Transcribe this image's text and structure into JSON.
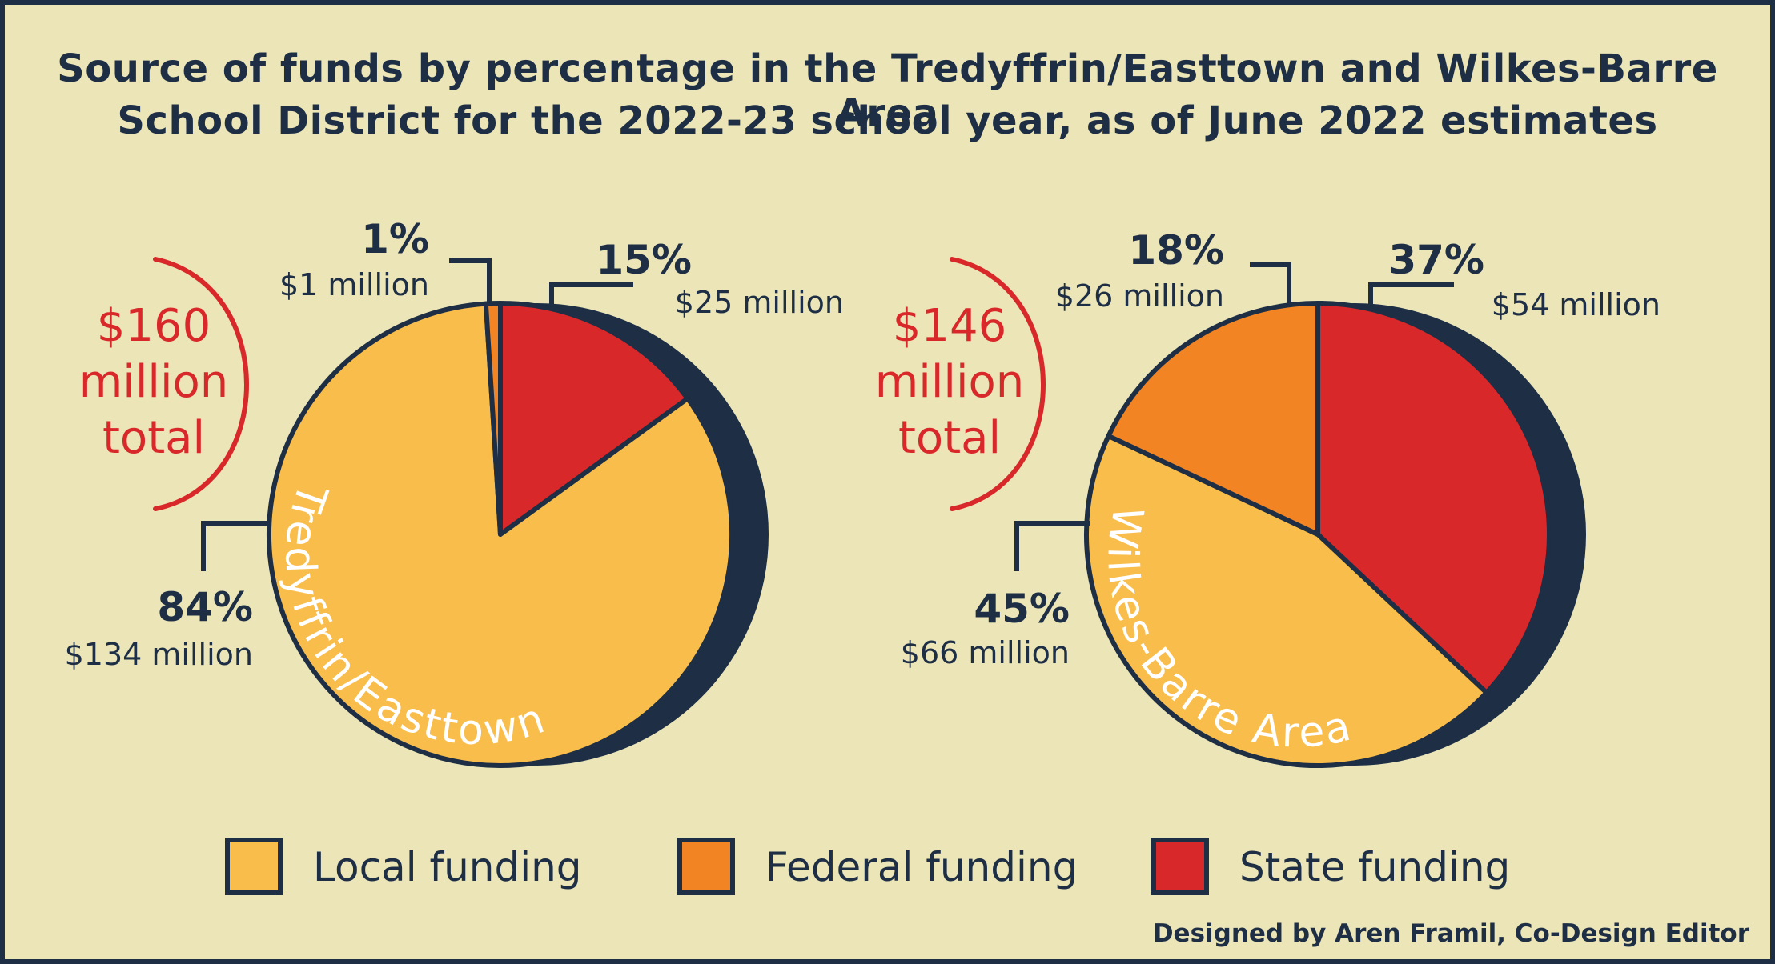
{
  "title": [
    "Source of funds by percentage in the Tredyffrin/Easttown and Wilkes-Barre Area",
    "School District for the 2022-23 school year, as of June 2022 estimates"
  ],
  "colors": {
    "local": "#f9bd4b",
    "federal": "#f28424",
    "state": "#d9282a",
    "outline": "#1d2e45",
    "total": "#d9282a",
    "background": "#ebe5b8"
  },
  "legend": [
    {
      "key": "local",
      "label": "Local funding"
    },
    {
      "key": "federal",
      "label": "Federal funding"
    },
    {
      "key": "state",
      "label": "State funding"
    }
  ],
  "credit": "Designed by Aren Framil, Co-Design Editor",
  "chart_data": [
    {
      "type": "pie",
      "title": "Tredyffrin/Easttown",
      "total_label": [
        "$160",
        "million",
        "total"
      ],
      "total_millions": 160,
      "slices": [
        {
          "key": "state",
          "name": "State funding",
          "percent": 15,
          "pct_label": "15%",
          "amount_label": "$25 million",
          "amount_millions": 25
        },
        {
          "key": "local",
          "name": "Local funding",
          "percent": 84,
          "pct_label": "84%",
          "amount_label": "$134 million",
          "amount_millions": 134
        },
        {
          "key": "federal",
          "name": "Federal funding",
          "percent": 1,
          "pct_label": "1%",
          "amount_label": "$1 million",
          "amount_millions": 1
        }
      ]
    },
    {
      "type": "pie",
      "title": "Wilkes-Barre Area",
      "total_label": [
        "$146",
        "million",
        "total"
      ],
      "total_millions": 146,
      "slices": [
        {
          "key": "state",
          "name": "State funding",
          "percent": 37,
          "pct_label": "37%",
          "amount_label": "$54 million",
          "amount_millions": 54
        },
        {
          "key": "local",
          "name": "Local funding",
          "percent": 45,
          "pct_label": "45%",
          "amount_label": "$66 million",
          "amount_millions": 66
        },
        {
          "key": "federal",
          "name": "Federal funding",
          "percent": 18,
          "pct_label": "18%",
          "amount_label": "$26 million",
          "amount_millions": 26
        }
      ]
    }
  ]
}
